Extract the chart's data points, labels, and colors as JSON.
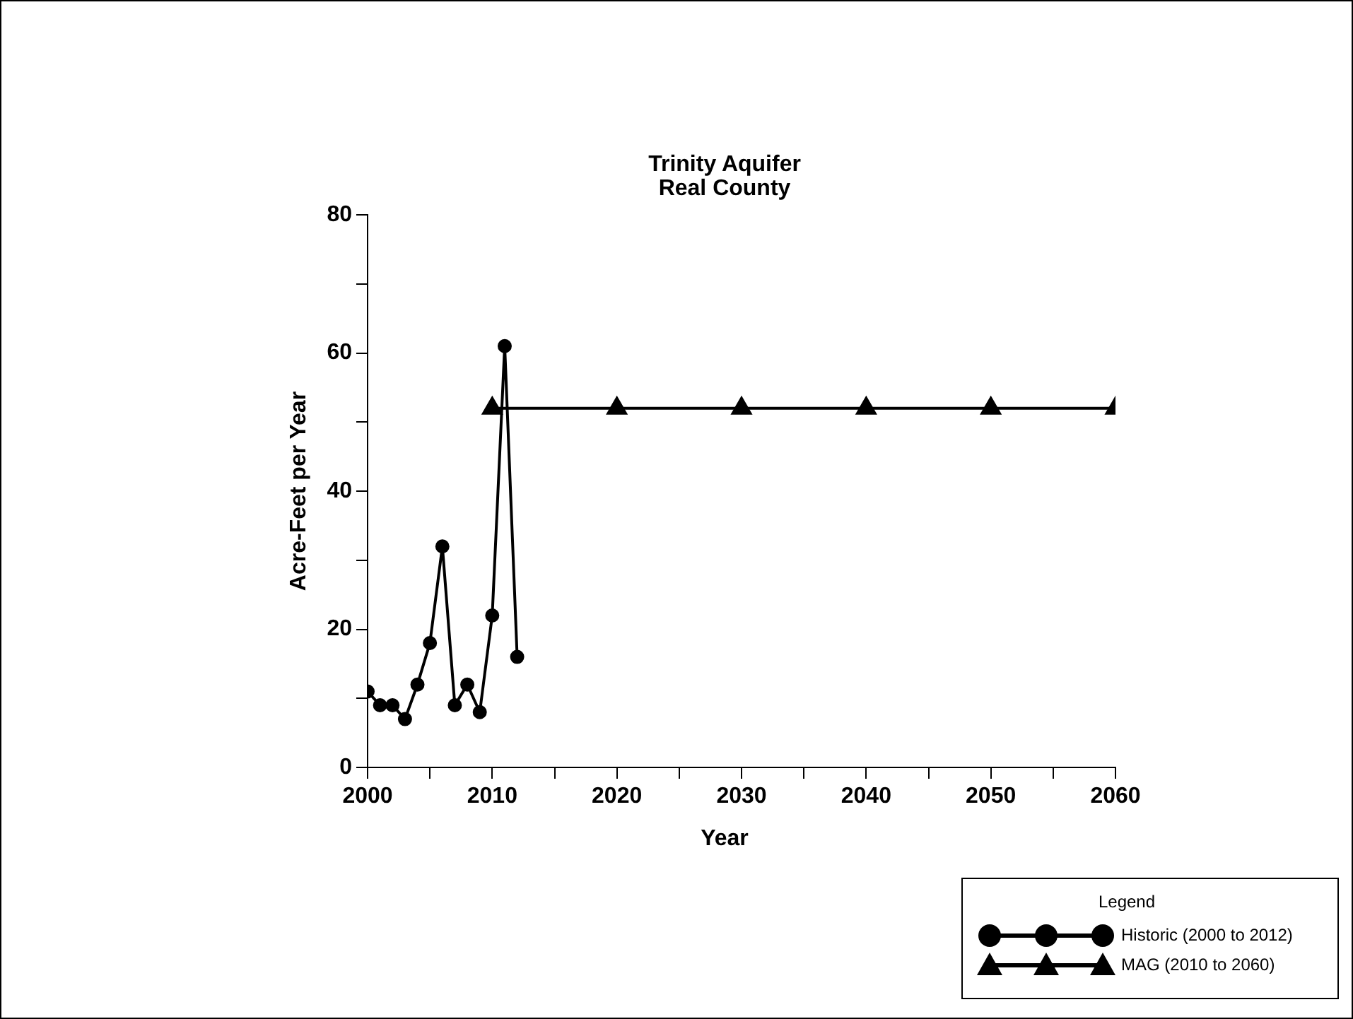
{
  "chart_data": {
    "type": "line",
    "title": "Trinity Aquifer\nReal County",
    "xlabel": "Year",
    "ylabel": "Acre-Feet per Year",
    "legend_title": "Legend",
    "legend": "bottom right",
    "grid": false,
    "xlim": [
      2000,
      2060
    ],
    "xticks": [
      2000,
      {
        "value": 2005,
        "label": null
      },
      2010,
      {
        "value": 2015,
        "label": null
      },
      2020,
      {
        "value": 2025,
        "label": null
      },
      2030,
      {
        "value": 2035,
        "label": null
      },
      2040,
      {
        "value": 2045,
        "label": null
      },
      2050,
      {
        "value": 2055,
        "label": null
      },
      2060
    ],
    "ylim": [
      0,
      80
    ],
    "yticks": [
      0,
      {
        "value": 10,
        "label": null
      },
      20,
      {
        "value": 30,
        "label": null
      },
      40,
      {
        "value": 50,
        "label": null
      },
      60,
      {
        "value": 70,
        "label": null
      },
      80
    ],
    "series": [
      {
        "name": "Historic (2000 to 2012)",
        "color": "#000000",
        "marker": "circle",
        "x": [
          2000,
          2001,
          2002,
          2003,
          2004,
          2005,
          2006,
          2007,
          2008,
          2009,
          2010,
          2011,
          2012
        ],
        "values": [
          11,
          9,
          9,
          7,
          12,
          18,
          32,
          9,
          12,
          8,
          22,
          61,
          16
        ]
      },
      {
        "name": "MAG (2010 to 2060)",
        "color": "#000000",
        "marker": "triangle",
        "x": [
          2010,
          2020,
          2030,
          2040,
          2050,
          2060
        ],
        "values": [
          52,
          52,
          52,
          52,
          52,
          52
        ]
      }
    ]
  }
}
